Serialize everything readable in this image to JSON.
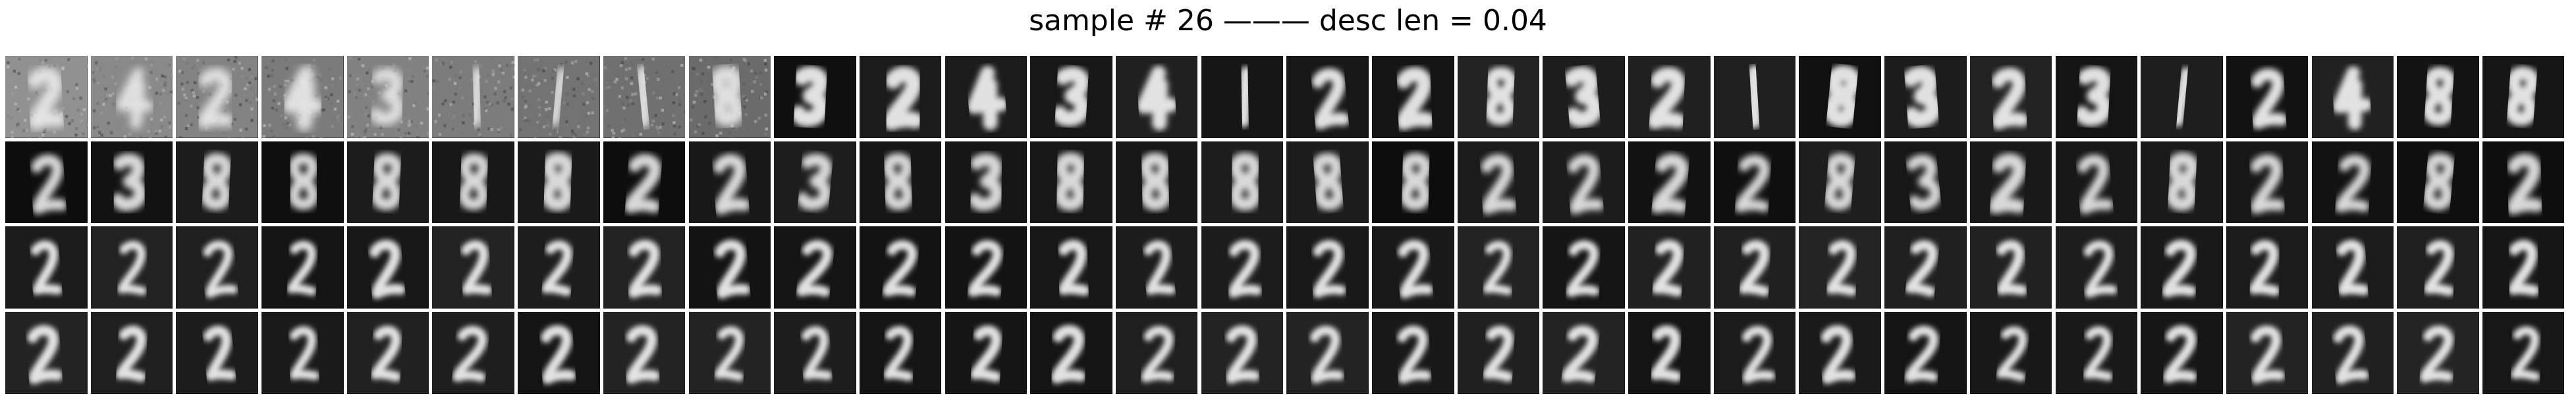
{
  "title": "sample # 26 ——— desc len = 0.04",
  "grid": {
    "rows": 4,
    "cols": 30
  },
  "panel_content": [
    "noisy-digit",
    "digit-2-transition",
    "digit-2",
    "digit-2"
  ]
}
